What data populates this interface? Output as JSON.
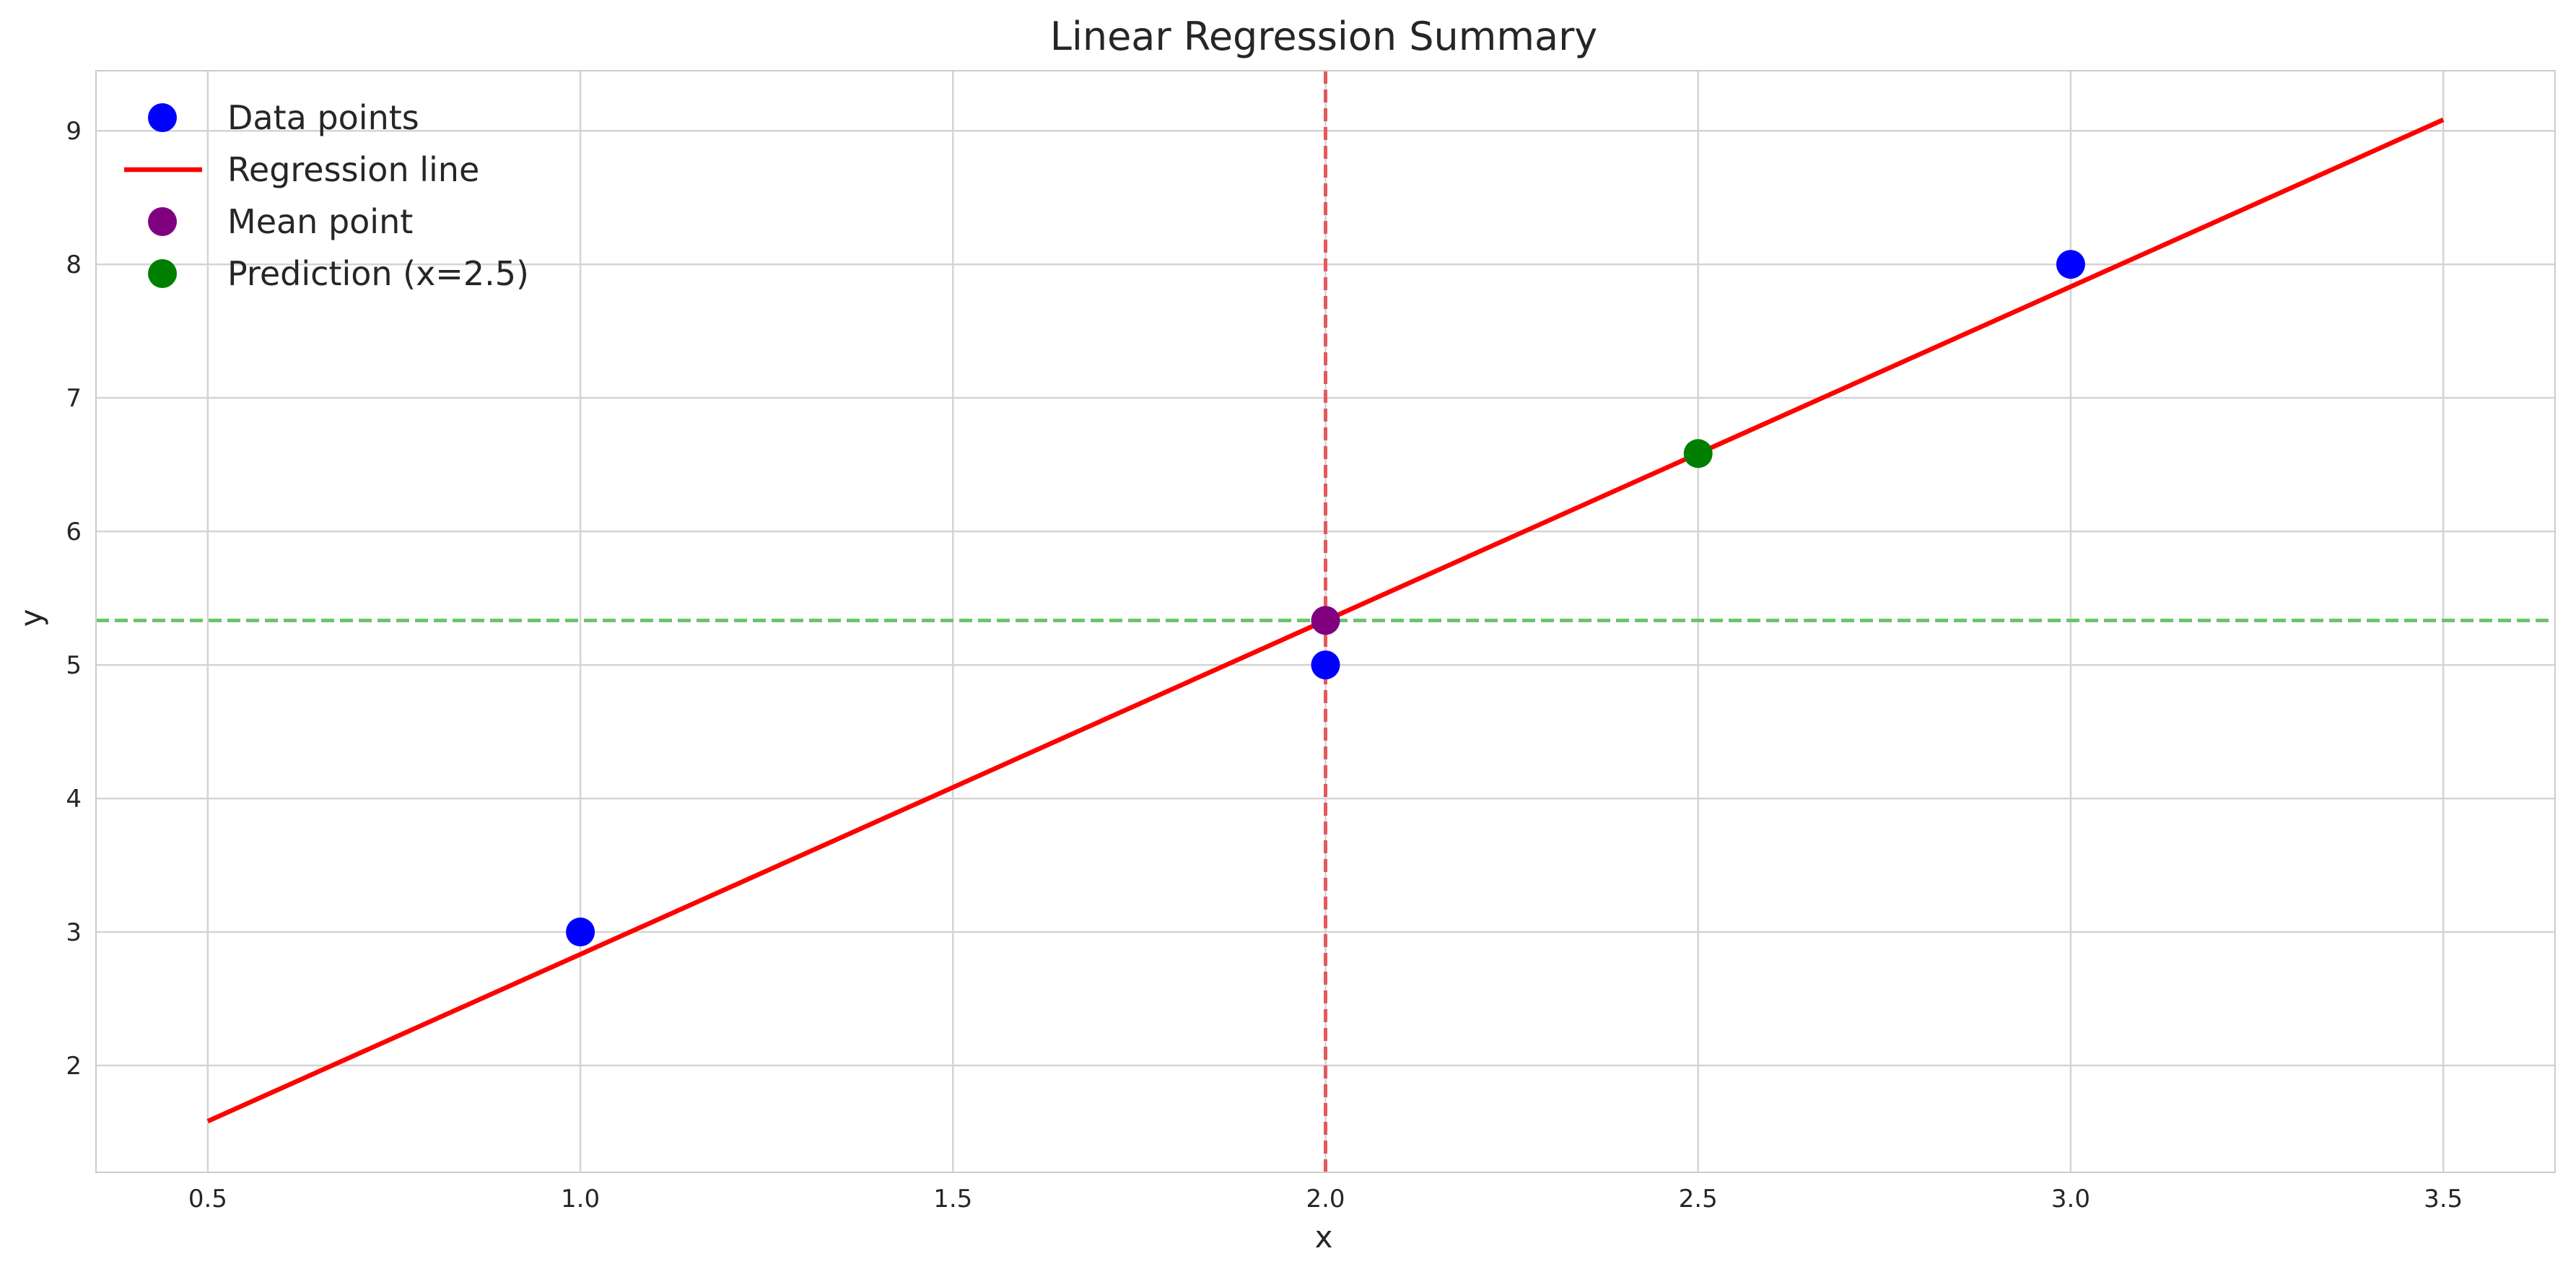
{
  "chart_data": {
    "type": "scatter",
    "title": "Linear Regression Summary",
    "xlabel": "x",
    "ylabel": "y",
    "xlim": [
      0.35,
      3.65
    ],
    "ylim": [
      1.2,
      9.45
    ],
    "xticks": [
      0.5,
      1.0,
      1.5,
      2.0,
      2.5,
      3.0,
      3.5
    ],
    "xtick_labels": [
      "0.5",
      "1.0",
      "1.5",
      "2.0",
      "2.5",
      "3.0",
      "3.5"
    ],
    "yticks": [
      2,
      3,
      4,
      5,
      6,
      7,
      8,
      9
    ],
    "ytick_labels": [
      "2",
      "3",
      "4",
      "5",
      "6",
      "7",
      "8",
      "9"
    ],
    "grid": true,
    "legend_position": "top-left",
    "series": [
      {
        "name": "Data points",
        "kind": "scatter",
        "color": "#0000ff",
        "points": [
          {
            "x": 1.0,
            "y": 3.0
          },
          {
            "x": 2.0,
            "y": 5.0
          },
          {
            "x": 3.0,
            "y": 8.0
          }
        ]
      },
      {
        "name": "Regression line",
        "kind": "line",
        "color": "#ff0000",
        "points": [
          {
            "x": 0.5,
            "y": 1.583
          },
          {
            "x": 3.5,
            "y": 9.083
          }
        ]
      },
      {
        "name": "Mean point",
        "kind": "scatter",
        "color": "#800080",
        "points": [
          {
            "x": 2.0,
            "y": 5.333
          }
        ]
      },
      {
        "name": "Prediction (x=2.5)",
        "kind": "scatter",
        "color": "#008000",
        "points": [
          {
            "x": 2.5,
            "y": 6.583
          }
        ]
      }
    ],
    "reference_lines": [
      {
        "orientation": "vertical",
        "x": 2.0,
        "color": "#e8585b",
        "style": "dashed"
      },
      {
        "orientation": "horizontal",
        "y": 5.333,
        "color": "#6cc46c",
        "style": "dashed"
      }
    ]
  }
}
